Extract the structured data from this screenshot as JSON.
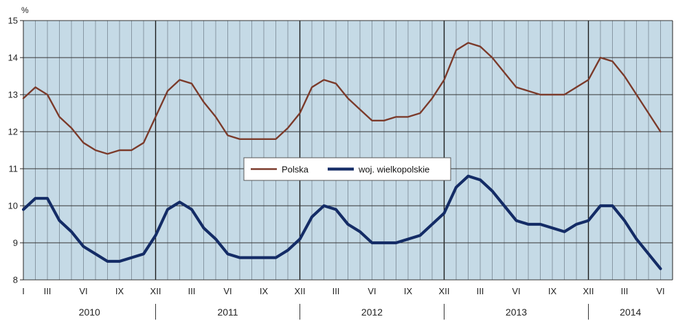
{
  "chart_data": {
    "type": "line",
    "ylabel": "%",
    "ylim": [
      8,
      15
    ],
    "y_ticks": [
      8,
      9,
      10,
      11,
      12,
      13,
      14,
      15
    ],
    "x_months": 55,
    "month_tick_labels": [
      "I",
      "III",
      "VI",
      "IX",
      "XII",
      "III",
      "VI",
      "IX",
      "XII",
      "III",
      "VI",
      "IX",
      "XII",
      "III",
      "VI",
      "IX",
      "XII",
      "III",
      "VI"
    ],
    "month_tick_index": [
      0,
      2,
      5,
      8,
      11,
      14,
      17,
      20,
      23,
      26,
      29,
      32,
      35,
      38,
      41,
      44,
      47,
      50,
      53
    ],
    "years": [
      "2010",
      "2011",
      "2012",
      "2013",
      "2014"
    ],
    "grid": true,
    "legend": {
      "position": "center",
      "entries": [
        "Polska",
        "woj. wielkopolskie"
      ]
    },
    "colors": {
      "polska": "#7b3a2a",
      "wielkopolskie": "#142c66",
      "plot_bg": "#c5dae6",
      "grid": "#6c7a84"
    },
    "series": [
      {
        "name": "Polska",
        "values": [
          12.9,
          13.2,
          13.0,
          12.4,
          12.1,
          11.7,
          11.5,
          11.4,
          11.5,
          11.5,
          11.7,
          12.4,
          13.1,
          13.4,
          13.3,
          12.8,
          12.4,
          11.9,
          11.8,
          11.8,
          11.8,
          11.8,
          12.1,
          12.5,
          13.2,
          13.4,
          13.3,
          12.9,
          12.6,
          12.3,
          12.3,
          12.4,
          12.4,
          12.5,
          12.9,
          13.4,
          14.2,
          14.4,
          14.3,
          14.0,
          13.6,
          13.2,
          13.1,
          13.0,
          13.0,
          13.0,
          13.2,
          13.4,
          14.0,
          13.9,
          13.5,
          13.0,
          12.5,
          12.0
        ]
      },
      {
        "name": "woj. wielkopolskie",
        "values": [
          9.9,
          10.2,
          10.2,
          9.6,
          9.3,
          8.9,
          8.7,
          8.5,
          8.5,
          8.6,
          8.7,
          9.2,
          9.9,
          10.1,
          9.9,
          9.4,
          9.1,
          8.7,
          8.6,
          8.6,
          8.6,
          8.6,
          8.8,
          9.1,
          9.7,
          10.0,
          9.9,
          9.5,
          9.3,
          9.0,
          9.0,
          9.0,
          9.1,
          9.2,
          9.5,
          9.8,
          10.5,
          10.8,
          10.7,
          10.4,
          10.0,
          9.6,
          9.5,
          9.5,
          9.4,
          9.3,
          9.5,
          9.6,
          10.0,
          10.0,
          9.6,
          9.1,
          8.7,
          8.3
        ]
      }
    ]
  }
}
